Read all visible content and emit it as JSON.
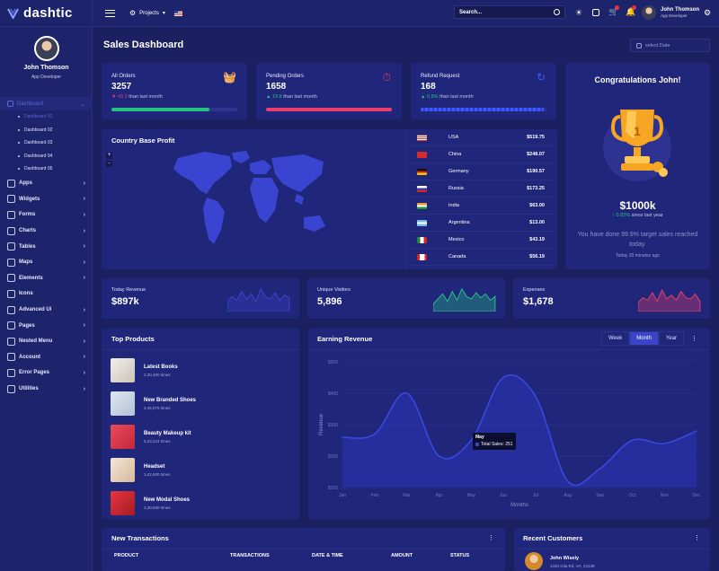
{
  "brand": {
    "name": "dashtic"
  },
  "profile": {
    "name": "John Thomson",
    "role": "App Developer"
  },
  "nav": {
    "section": "Dashboard",
    "subitems": [
      {
        "label": "Dashboard 01",
        "active": true
      },
      {
        "label": "Dashboard 02"
      },
      {
        "label": "Dashboard 03"
      },
      {
        "label": "Dashboard 04"
      },
      {
        "label": "Dashboard 05"
      }
    ],
    "items": [
      "Apps",
      "Widgets",
      "Forms",
      "Charts",
      "Tables",
      "Maps",
      "Elements",
      "Icons",
      "Advanced Ui",
      "Pages",
      "Nested Menu",
      "Account",
      "Error Pages",
      "Utilities"
    ]
  },
  "topbar": {
    "projects": "Projects",
    "search_placeholder": "Search...",
    "user_name": "John Thomson",
    "user_role": "App Developer"
  },
  "page": {
    "title": "Sales Dashboard",
    "date_placeholder": "select Date"
  },
  "stats": [
    {
      "label": "All Orders",
      "value": "3257",
      "change": "43.2",
      "suffix": "than last month",
      "trend": "down",
      "progress": 0.78,
      "color": "#26c281"
    },
    {
      "label": "Pending Orders",
      "value": "1658",
      "change": "19.8",
      "suffix": "than last month",
      "trend": "up",
      "progress": 1.0,
      "color": "#e83e6c"
    },
    {
      "label": "Refund Request",
      "value": "168",
      "change": "0.8%",
      "suffix": "than last month",
      "trend": "up",
      "progress": 0.98,
      "color": "#3d5afe"
    }
  ],
  "map": {
    "title": "Country Base Profit",
    "zoom_in": "+",
    "zoom_out": "-"
  },
  "countries": [
    {
      "name": "USA",
      "amount": "$519.75"
    },
    {
      "name": "China",
      "amount": "$248.07"
    },
    {
      "name": "Germany",
      "amount": "$190.57"
    },
    {
      "name": "Russia",
      "amount": "$173.25"
    },
    {
      "name": "India",
      "amount": "$63.00"
    },
    {
      "name": "Argentina",
      "amount": "$13.00"
    },
    {
      "name": "Mexico",
      "amount": "$43.19"
    },
    {
      "name": "Canada",
      "amount": "$56.19"
    }
  ],
  "congrats": {
    "title": "Congratulations John!",
    "amount": "$1000k",
    "change": "0.82%",
    "change_suffix": "since last year",
    "message": "You have done 99.9% target sales reached today.",
    "time": "Today 20 minutes ago"
  },
  "sparks": [
    {
      "label": "Today Revenue",
      "value": "$897k",
      "color": "#3a44c9"
    },
    {
      "label": "Unique Visitors",
      "value": "5,896",
      "color": "#26c281"
    },
    {
      "label": "Expenses",
      "value": "$1,678",
      "color": "#e83e6c"
    }
  ],
  "top_products": {
    "title": "Top Products",
    "items": [
      {
        "name": "Latest Books",
        "sub": "2,30,400 times"
      },
      {
        "name": "New Branded Shoes",
        "sub": "3,45,675 times"
      },
      {
        "name": "Beauty Makeup kit",
        "sub": "5,23,224 times"
      },
      {
        "name": "Headset",
        "sub": "1,42,600 times"
      },
      {
        "name": "New Modal Shoes",
        "sub": "3,30,600 times"
      }
    ]
  },
  "earning": {
    "title": "Earning Revenue",
    "tabs": [
      "Week",
      "Month",
      "Year"
    ],
    "active_tab": "Month",
    "tooltip_title": "May",
    "tooltip_label": "Total Sales: 251"
  },
  "chart_data": {
    "type": "area",
    "title": "Earning Revenue",
    "xlabel": "Months",
    "ylabel": "Revenue",
    "categories": [
      "Jan",
      "Feb",
      "Mar",
      "Apr",
      "May",
      "Jun",
      "Jul",
      "Aug",
      "Sep",
      "Oct",
      "Nov",
      "Dec"
    ],
    "values": [
      260,
      270,
      400,
      200,
      251,
      450,
      390,
      120,
      160,
      250,
      240,
      280
    ],
    "yticks": [
      "$500",
      "$400",
      "$300",
      "$200",
      "$100"
    ],
    "ylim": [
      100,
      500
    ]
  },
  "transactions": {
    "title": "New Transactions",
    "headers": [
      "PRODUCT",
      "TRANSACTIONS",
      "DATE & TIME",
      "AMOUNT",
      "STATUS"
    ]
  },
  "customers": {
    "title": "Recent Customers",
    "first_name": "John Wisely",
    "first_address": "1340 Gila Rd, VA, 23139"
  }
}
